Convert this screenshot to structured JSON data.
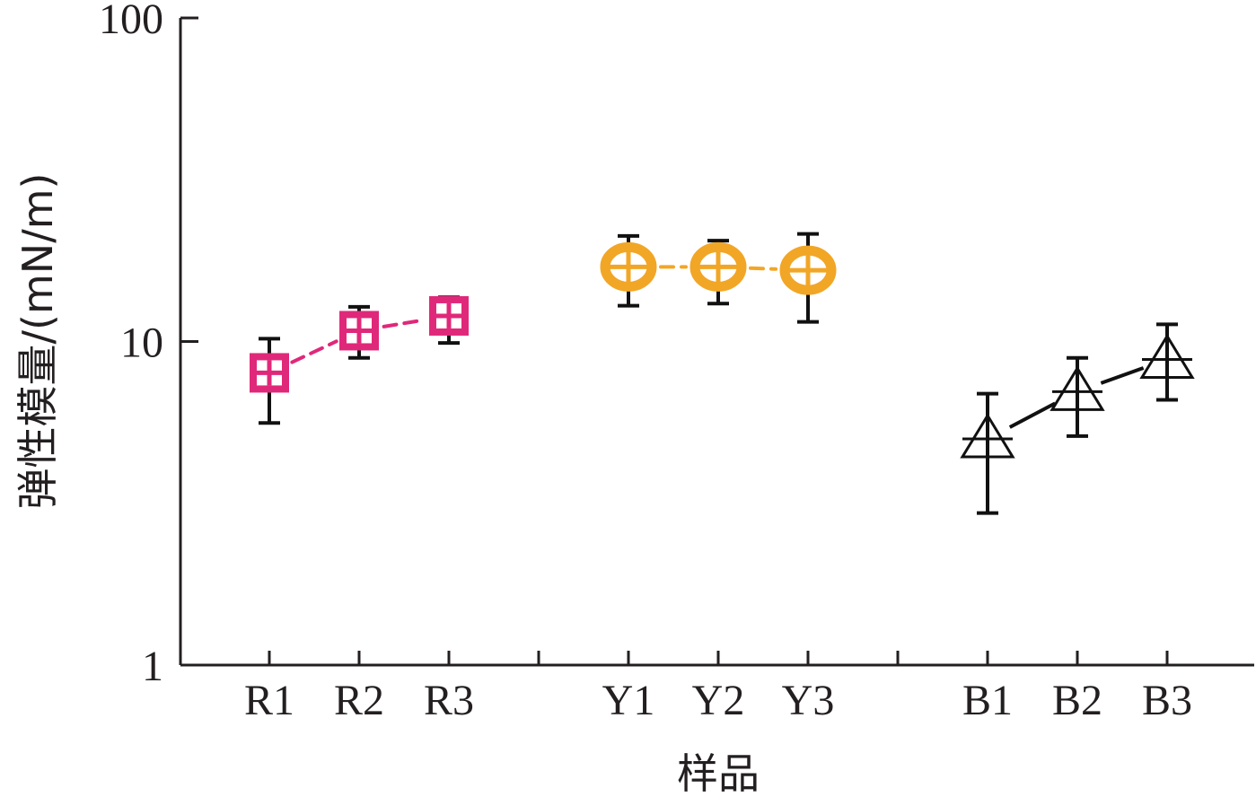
{
  "chart_data": {
    "type": "scatter",
    "title": "",
    "xlabel": "样品",
    "ylabel": "弹性模量/(mN/m)",
    "yscale": "log",
    "ylim": [
      1,
      100
    ],
    "yticks": [
      "1",
      "10",
      "100"
    ],
    "grid": false,
    "legend": "none",
    "groups": [
      {
        "color": "#e0287a",
        "marker": "square-cross",
        "connector": "dashed",
        "points": [
          {
            "x": "R1",
            "y": 8.0,
            "err_low": 5.6,
            "err_high": 10.2
          },
          {
            "x": "R2",
            "y": 10.8,
            "err_low": 8.9,
            "err_high": 12.8
          },
          {
            "x": "R3",
            "y": 12.0,
            "err_low": 9.9,
            "err_high": 13.7
          }
        ]
      },
      {
        "color": "#f2a626",
        "marker": "circle-cross",
        "connector": "dashed",
        "points": [
          {
            "x": "Y1",
            "y": 17.0,
            "err_low": 12.9,
            "err_high": 21.2
          },
          {
            "x": "Y2",
            "y": 17.0,
            "err_low": 13.1,
            "err_high": 20.5
          },
          {
            "x": "Y3",
            "y": 16.6,
            "err_low": 11.5,
            "err_high": 21.5
          }
        ]
      },
      {
        "color": "#111111",
        "marker": "triangle-open",
        "connector": "solid",
        "points": [
          {
            "x": "B1",
            "y": 5.0,
            "err_low": 2.95,
            "err_high": 6.9
          },
          {
            "x": "B2",
            "y": 7.0,
            "err_low": 5.1,
            "err_high": 8.9
          },
          {
            "x": "B3",
            "y": 8.8,
            "err_low": 6.6,
            "err_high": 11.3
          }
        ]
      }
    ]
  }
}
